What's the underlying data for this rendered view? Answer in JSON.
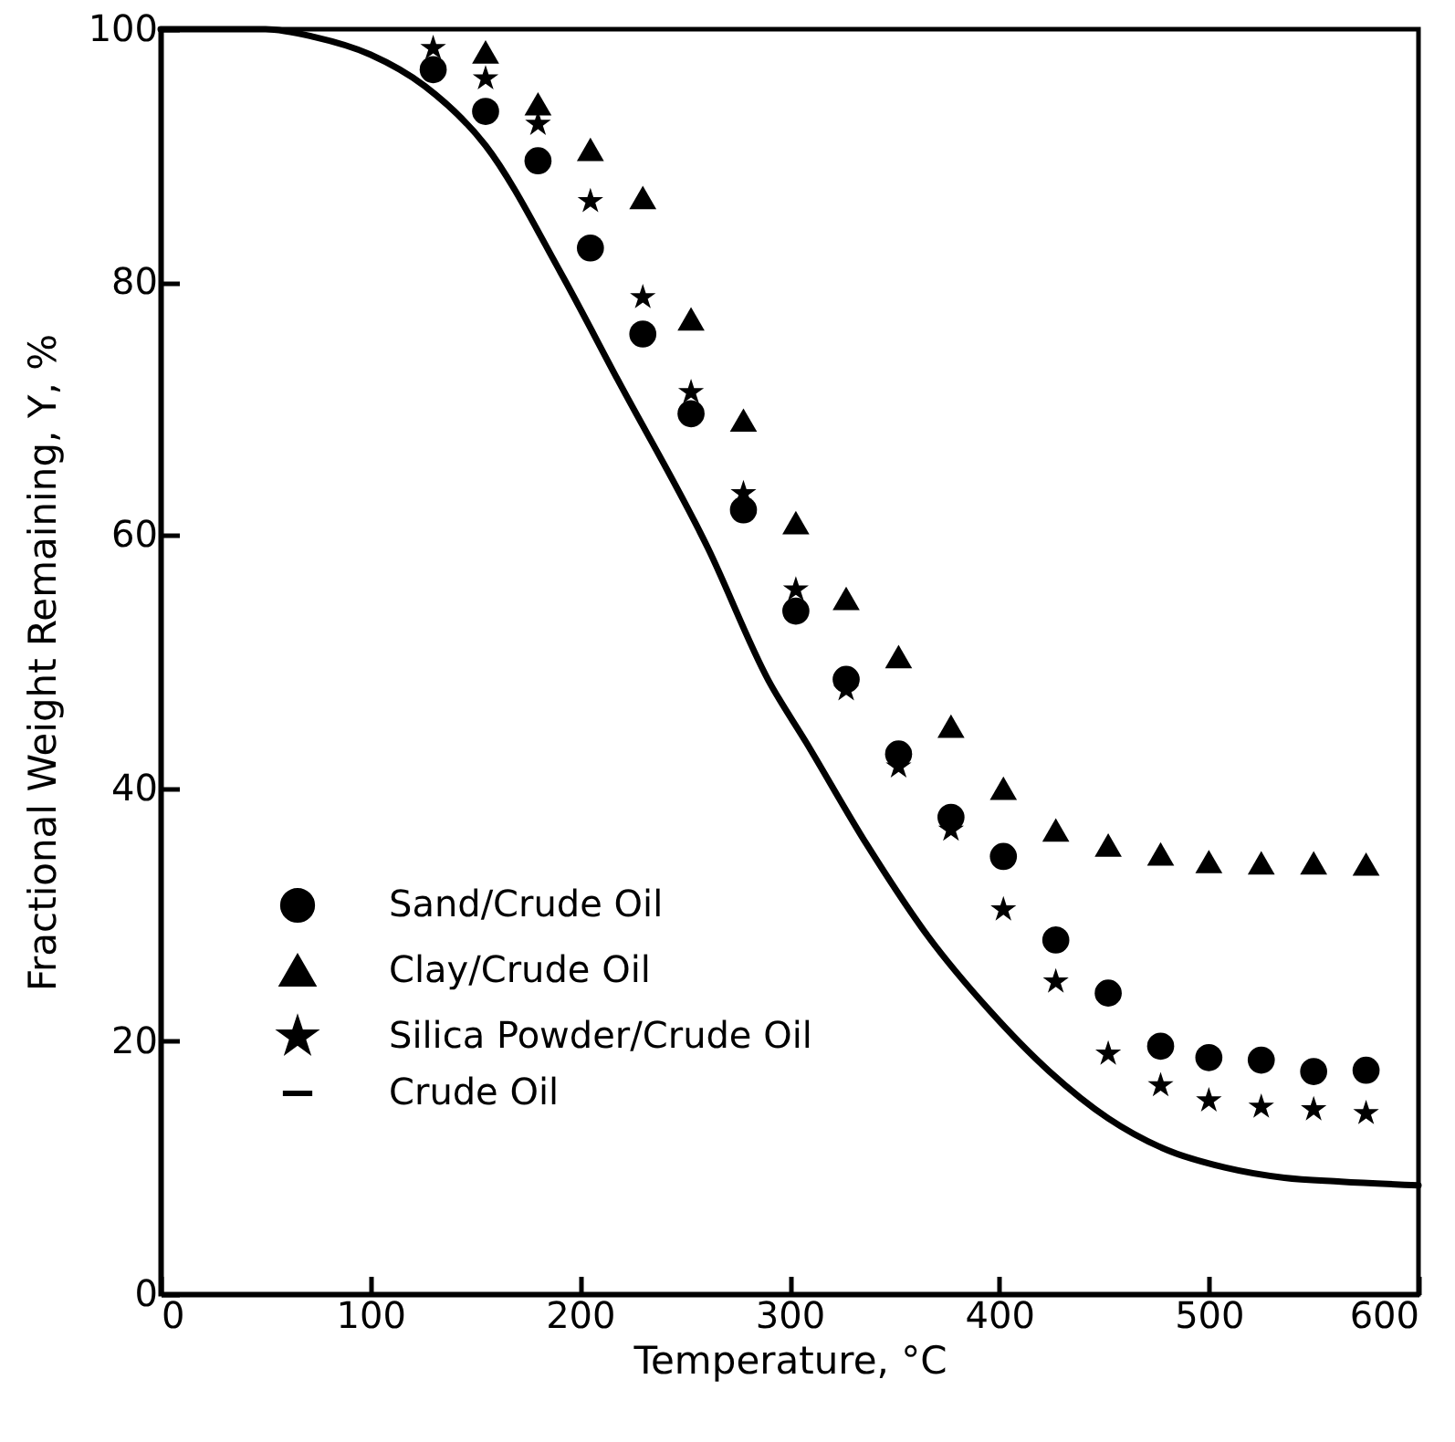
{
  "chart_data": {
    "type": "scatter",
    "xlabel": "Temperature, °C",
    "ylabel": "Fractional Weight Remaining, Y, %",
    "x": [
      130,
      155,
      180,
      205,
      230,
      253,
      278,
      303,
      327,
      352,
      377,
      402,
      427,
      452,
      477,
      500,
      525,
      550,
      575
    ],
    "series": [
      {
        "name": "Sand/Crude Oil",
        "color": "#000000",
        "marker": "circle",
        "values": [
          96.8,
          93.5,
          89.6,
          82.7,
          75.9,
          69.6,
          62.0,
          54.0,
          48.6,
          42.7,
          37.7,
          34.6,
          28.0,
          23.8,
          19.6,
          18.7,
          18.5,
          17.6,
          17.7
        ]
      },
      {
        "name": "Clay/Crude Oil",
        "color": "#000000",
        "marker": "triangle",
        "values": [
          null,
          98.2,
          94.1,
          90.5,
          86.7,
          77.1,
          69.1,
          61.0,
          55.0,
          50.4,
          44.9,
          40.0,
          36.7,
          35.5,
          34.8,
          34.2,
          34.1,
          34.1,
          34.0
        ]
      },
      {
        "name": "Silica Powder/Crude Oil",
        "color": "#000000",
        "marker": "star",
        "values": [
          98.5,
          96.1,
          92.5,
          86.4,
          78.8,
          71.3,
          63.3,
          55.7,
          47.8,
          41.7,
          36.7,
          30.4,
          24.7,
          19.0,
          16.5,
          15.3,
          14.8,
          14.6,
          14.3
        ]
      },
      {
        "name": "Crude Oil",
        "type": "line",
        "color": "#000000",
        "marker": "none",
        "line_style": "solid",
        "x": [
          0,
          50,
          73,
          100,
          126,
          155,
          191,
          218,
          261,
          290,
          308,
          337,
          366,
          395,
          424,
          452,
          480,
          508,
          536,
          563,
          600
        ],
        "values": [
          100,
          100,
          99.4,
          98,
          95.5,
          90.8,
          80.7,
          72.3,
          59.0,
          48.5,
          43.6,
          35.5,
          28.3,
          22.5,
          17.6,
          13.9,
          11.4,
          10.0,
          9.2,
          8.9,
          8.6
        ]
      }
    ],
    "xlim": [
      0,
      600
    ],
    "xticks": [
      0,
      100,
      200,
      300,
      400,
      500,
      600
    ],
    "ylim": [
      0,
      100
    ],
    "yticks": [
      0,
      20,
      40,
      60,
      80,
      100
    ],
    "grid": false,
    "legend": "bottom left"
  }
}
